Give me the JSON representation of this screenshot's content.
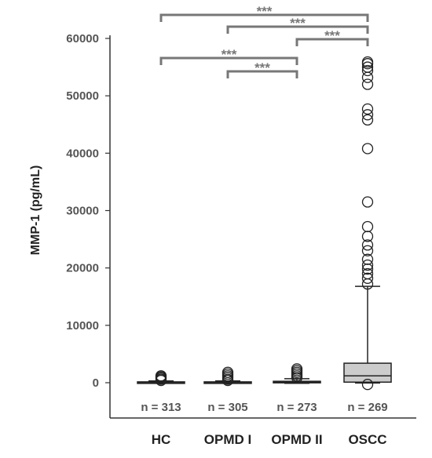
{
  "chart_data": {
    "type": "box",
    "ylabel": "MMP-1 (pg/mL)",
    "ylim": [
      -6000,
      60000
    ],
    "yticks": [
      0,
      10000,
      20000,
      30000,
      40000,
      50000,
      60000
    ],
    "ytick_labels": [
      "0",
      "10000",
      "20000",
      "30000",
      "40000",
      "50000",
      "60000"
    ],
    "categories": [
      "HC",
      "OPMD I",
      "OPMD II",
      "OSCC"
    ],
    "n_labels": [
      "n = 313",
      "n = 305",
      "n = 273",
      "n = 269"
    ],
    "groups": [
      {
        "category": "HC",
        "whisker_low": -100,
        "q1": 0,
        "median": 50,
        "q3": 150,
        "whisker_high": 300,
        "outliers": [
          400,
          600,
          800,
          1000,
          1200
        ]
      },
      {
        "category": "OPMD I",
        "whisker_low": -100,
        "q1": 0,
        "median": 50,
        "q3": 150,
        "whisker_high": 300,
        "outliers": [
          400,
          600,
          900,
          1200,
          1500,
          1800
        ]
      },
      {
        "category": "OPMD II",
        "whisker_low": -100,
        "q1": 0,
        "median": 100,
        "q3": 250,
        "whisker_high": 700,
        "outliers": [
          900,
          1200,
          1500,
          1800,
          2100,
          2400
        ]
      },
      {
        "category": "OSCC",
        "whisker_low": -50,
        "q1": 100,
        "median": 1200,
        "q3": 3400,
        "whisker_high": 16800,
        "outliers": [
          -300,
          17200,
          18200,
          19000,
          19800,
          20500,
          21500,
          23000,
          24000,
          25500,
          27200,
          31500,
          40800,
          45800,
          46700,
          47700,
          52000,
          53200,
          54400,
          55000,
          55600,
          55900
        ]
      }
    ],
    "significance": [
      {
        "from": "HC",
        "to": "OSCC",
        "label": "***",
        "level": 1
      },
      {
        "from": "OPMD I",
        "to": "OSCC",
        "label": "***",
        "level": 2
      },
      {
        "from": "OPMD II",
        "to": "OSCC",
        "label": "***",
        "level": 3
      },
      {
        "from": "HC",
        "to": "OPMD II",
        "label": "***",
        "level": 4
      },
      {
        "from": "OPMD I",
        "to": "OPMD II",
        "label": "***",
        "level": 5
      }
    ],
    "colors": {
      "box_fill": "#cccccc",
      "box_edge": "#222222",
      "bracket": "#777777",
      "axis": "#333333"
    }
  }
}
